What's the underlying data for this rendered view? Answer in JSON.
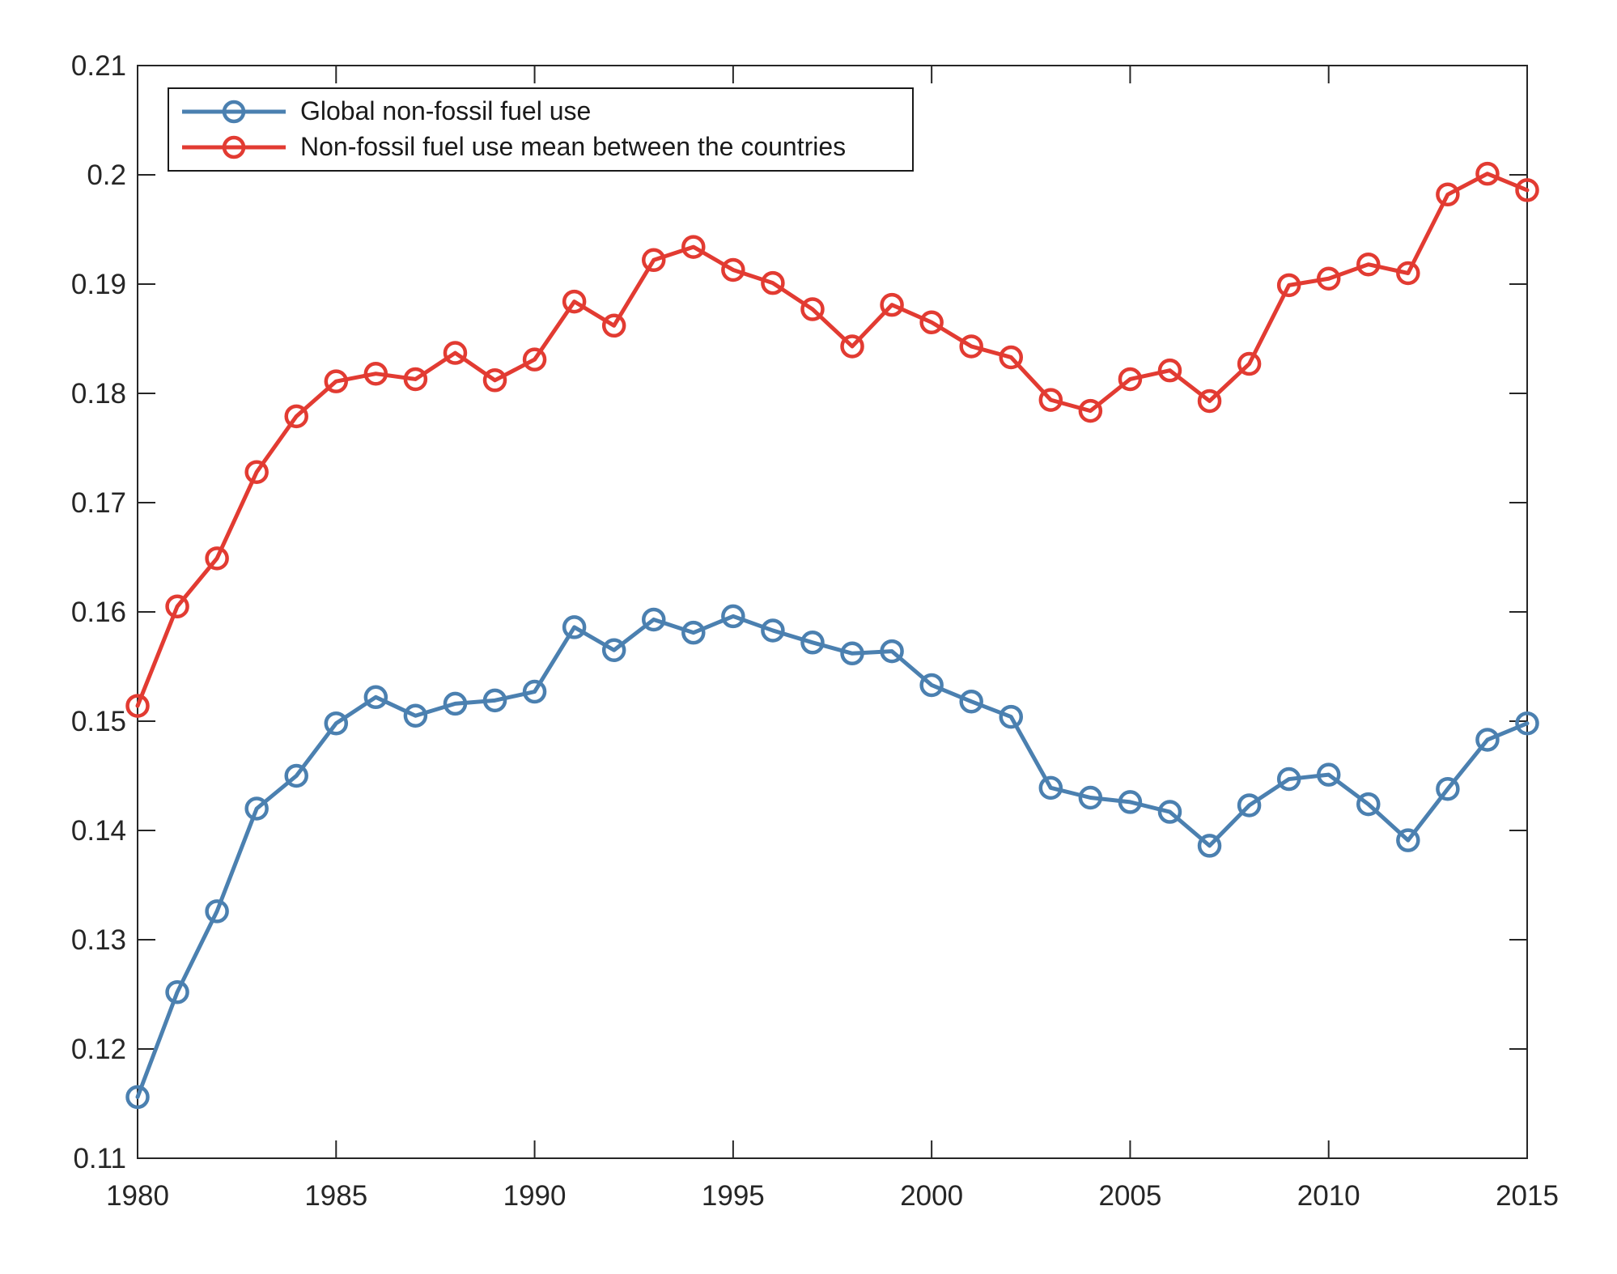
{
  "figure": {
    "background": "#ffffff",
    "axes_color": "#262626",
    "text_color": "#262626"
  },
  "legend": {
    "position": "top-left-inside",
    "entries": [
      {
        "label": "Global non-fossil fuel use"
      },
      {
        "label": "Non-fossil fuel use mean between the countries"
      }
    ]
  },
  "chart_data": {
    "type": "line",
    "title": "",
    "xlabel": "",
    "ylabel": "",
    "grid": false,
    "box": true,
    "tick_direction": "in",
    "xlim": [
      1980,
      2015
    ],
    "ylim": [
      0.11,
      0.21
    ],
    "x_ticks": [
      1980,
      1985,
      1990,
      1995,
      2000,
      2005,
      2010,
      2015
    ],
    "x_ticklabels": [
      "1980",
      "1985",
      "1990",
      "1995",
      "2000",
      "2005",
      "2010",
      "2015"
    ],
    "y_ticks": [
      0.11,
      0.12,
      0.13,
      0.14,
      0.15,
      0.16,
      0.17,
      0.18,
      0.19,
      0.2,
      0.21
    ],
    "y_ticklabels": [
      "0.11",
      "0.12",
      "0.13",
      "0.14",
      "0.15",
      "0.16",
      "0.17",
      "0.18",
      "0.19",
      "0.2",
      "0.21"
    ],
    "x": [
      1980,
      1981,
      1982,
      1983,
      1984,
      1985,
      1986,
      1987,
      1988,
      1989,
      1990,
      1991,
      1992,
      1993,
      1994,
      1995,
      1996,
      1997,
      1998,
      1999,
      2000,
      2001,
      2002,
      2003,
      2004,
      2005,
      2006,
      2007,
      2008,
      2009,
      2010,
      2011,
      2012,
      2013,
      2014,
      2015
    ],
    "series": [
      {
        "name": "Global non-fossil fuel use",
        "color": "#4b80b0",
        "marker": "open-circle",
        "values": [
          0.1156,
          0.1252,
          0.1326,
          0.142,
          0.145,
          0.1498,
          0.1522,
          0.1505,
          0.1516,
          0.1519,
          0.1527,
          0.1586,
          0.1565,
          0.1593,
          0.1581,
          0.1596,
          0.1583,
          0.1572,
          0.1562,
          0.1564,
          0.1533,
          0.1518,
          0.1504,
          0.1439,
          0.143,
          0.1426,
          0.1417,
          0.1386,
          0.1423,
          0.1447,
          0.1451,
          0.1424,
          0.1391,
          0.1438,
          0.1483,
          0.1498
        ]
      },
      {
        "name": "Non-fossil fuel use mean between the countries",
        "color": "#e23b32",
        "marker": "open-circle",
        "values": [
          0.1514,
          0.1605,
          0.1649,
          0.1728,
          0.1779,
          0.1811,
          0.1818,
          0.1813,
          0.1837,
          0.1812,
          0.1831,
          0.1884,
          0.1862,
          0.1922,
          0.1934,
          0.1913,
          0.1901,
          0.1877,
          0.1843,
          0.1881,
          0.1865,
          0.1843,
          0.1833,
          0.1794,
          0.1784,
          0.1813,
          0.1821,
          0.1793,
          0.1827,
          0.1899,
          0.1905,
          0.1918,
          0.191,
          0.1982,
          0.2001,
          0.1986
        ]
      }
    ]
  }
}
